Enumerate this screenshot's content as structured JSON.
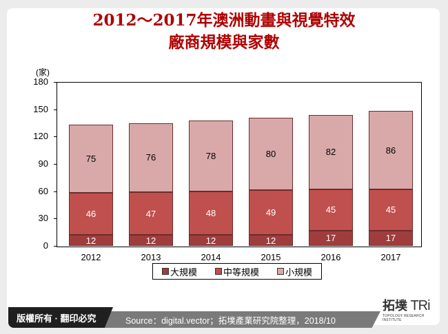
{
  "title": {
    "line1": "2012～2017年澳洲動畫與視覺特效",
    "line2": "廠商規模與家數"
  },
  "chart_data": {
    "type": "bar",
    "stacked": true,
    "title": "2012～2017年澳洲動畫與視覺特效廠商規模與家數",
    "xlabel": "",
    "ylabel": "(家)",
    "ylim": [
      0,
      180
    ],
    "yticks": [
      0,
      30,
      60,
      90,
      120,
      150,
      180
    ],
    "categories": [
      "2012",
      "2013",
      "2014",
      "2015",
      "2016",
      "2017"
    ],
    "series": [
      {
        "name": "大規模",
        "color": "#9f3d3d",
        "values": [
          12,
          12,
          12,
          12,
          17,
          17
        ]
      },
      {
        "name": "中等規模",
        "color": "#c0504d",
        "values": [
          46,
          47,
          48,
          49,
          45,
          45
        ]
      },
      {
        "name": "小規模",
        "color": "#d9a9a9",
        "values": [
          75,
          76,
          78,
          80,
          82,
          86
        ]
      }
    ],
    "legend_position": "bottom",
    "grid": false
  },
  "axis": {
    "unit": "(家)",
    "yticks": [
      "180",
      "150",
      "120",
      "90",
      "60",
      "30",
      "0"
    ]
  },
  "legend": {
    "items": [
      "大規模",
      "中等規模",
      "小規模"
    ]
  },
  "footer": {
    "copyright": "版權所有 · 翻印必究",
    "source": "Source：digital.vector；拓墣產業研究院整理，2018/10",
    "logo_cn": "拓墣",
    "logo_en": "TRi",
    "logo_sub": "TOPOLOGY RESEARCH INSTITUTE"
  }
}
